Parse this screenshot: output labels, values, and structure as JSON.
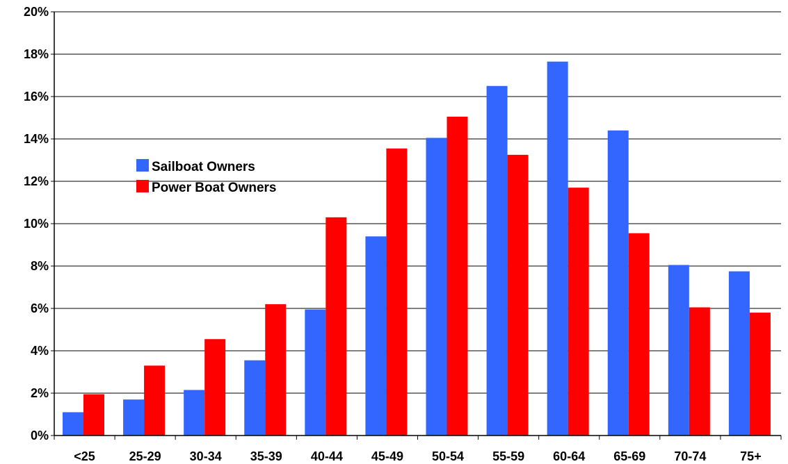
{
  "chart_data": {
    "type": "bar",
    "categories": [
      "<25",
      "25-29",
      "30-34",
      "35-39",
      "40-44",
      "45-49",
      "50-54",
      "55-59",
      "60-64",
      "65-69",
      "70-74",
      "75+"
    ],
    "series": [
      {
        "name": "Sailboat Owners",
        "color": "#3366ff",
        "values": [
          1.1,
          1.7,
          2.15,
          3.55,
          5.95,
          9.4,
          14.05,
          16.5,
          17.65,
          14.4,
          8.05,
          7.75
        ]
      },
      {
        "name": "Power Boat Owners",
        "color": "#ff0000",
        "values": [
          1.95,
          3.3,
          4.55,
          6.2,
          10.3,
          13.55,
          15.05,
          13.25,
          11.7,
          9.55,
          6.05,
          5.8
        ]
      }
    ],
    "yticks": [
      "0%",
      "2%",
      "4%",
      "6%",
      "8%",
      "10%",
      "12%",
      "14%",
      "16%",
      "18%",
      "20%"
    ],
    "ylim": [
      0,
      20
    ],
    "grid": true,
    "legend": {
      "placement": "left-middle"
    },
    "title": "",
    "xlabel": "",
    "ylabel": ""
  }
}
